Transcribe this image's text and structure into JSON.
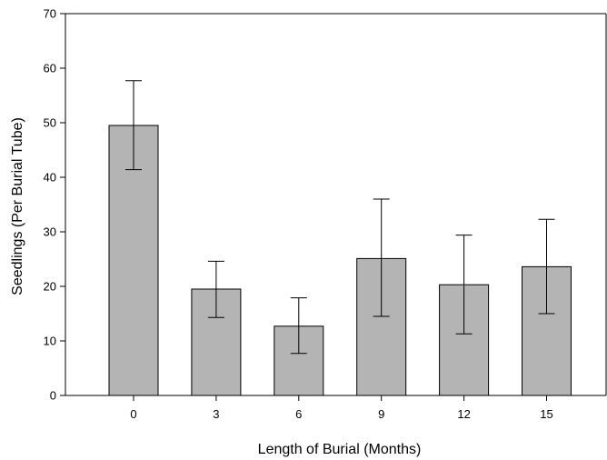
{
  "chart_data": {
    "type": "bar",
    "title": "",
    "xlabel": "Length of Burial (Months)",
    "ylabel": "Seedlings (Per Burial Tube)",
    "categories": [
      "0",
      "3",
      "6",
      "9",
      "12",
      "15"
    ],
    "values": [
      49.5,
      19.5,
      12.7,
      25.1,
      20.3,
      23.6
    ],
    "error_low": [
      41.4,
      14.3,
      7.7,
      14.5,
      11.3,
      15.0
    ],
    "error_high": [
      57.7,
      24.6,
      17.9,
      36.0,
      29.4,
      32.3
    ],
    "ylim": [
      0,
      70
    ],
    "yticks": [
      "0",
      "10",
      "20",
      "30",
      "40",
      "50",
      "60",
      "70"
    ],
    "grid": false,
    "legend": false,
    "colors": {
      "bar_fill": "#b4b4b4",
      "bar_stroke": "#000000",
      "axis": "#000000"
    }
  }
}
